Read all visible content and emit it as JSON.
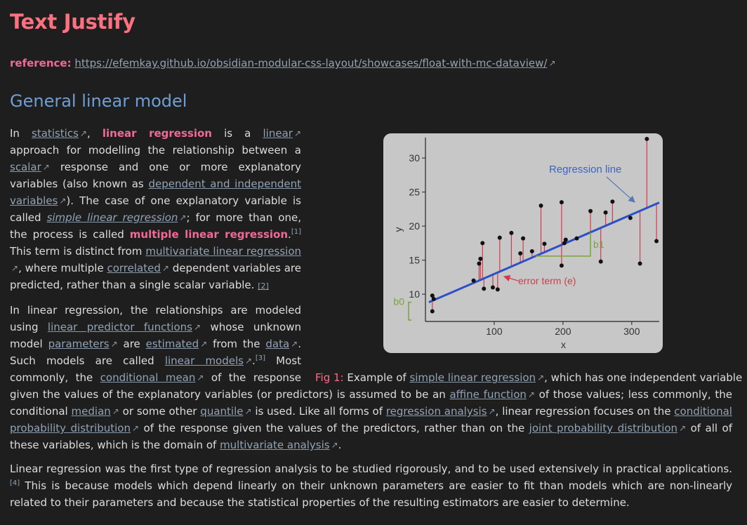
{
  "title": "Text Justify",
  "reference": {
    "label": "reference:",
    "url": "https://efemkay.github.io/obsidian-modular-css-layout/showcases/float-with-mc-dataview/"
  },
  "section_title": "General linear model",
  "paragraph1": {
    "t0": "In ",
    "link_statistics": "statistics",
    "t1": ", ",
    "hl_linear_regression": "linear regression",
    "t2": " is a ",
    "link_linear": "linear",
    "t3": " approach for modelling the relationship between a ",
    "link_scalar": "scalar",
    "t4": " response and one or more explanatory variables (also known as ",
    "link_dep_indep": "dependent and independent variables",
    "t5": "). The case of one explanatory variable is called ",
    "link_simple_lr": "simple linear regression",
    "t6": "; for more than one, the process is called ",
    "hl_multiple_lr": "multiple linear regression",
    "t7": ".",
    "sup1": "[1]",
    "t8": " This term is distinct from ",
    "link_multivariate_lr": "multivariate linear regression",
    "t9": ", where multiple ",
    "link_correlated": "correlated",
    "t10": " dependent variables are predicted, rather than a single scalar variable. ",
    "ref2": "[2]"
  },
  "paragraph2": {
    "t0": "In linear regression, the relationships are modeled using ",
    "link_lpf": "linear predictor functions",
    "t1": " whose unknown model ",
    "link_parameters": "parameters",
    "t2": " are ",
    "link_estimated": "estimated",
    "t3": " from the ",
    "link_data": "data",
    "t4": ". Such models are called ",
    "link_linear_models": "linear models",
    "t5": ".",
    "sup3": "[3]",
    "t6": " Most commonly, the ",
    "link_cond_mean": "conditional mean",
    "t7": " of the response given the values of the explanatory variables (or predictors) is assumed to be an ",
    "link_affine": "affine function",
    "t8": " of those values; less commonly, the conditional ",
    "link_median": "median",
    "t9": " or some other ",
    "link_quantile": "quantile",
    "t10": " is used. Like all forms of ",
    "link_regression_analysis": "regression analysis",
    "t11": ", linear regression focuses on the ",
    "link_cond_prob": "conditional probability distribution",
    "t12": " of the response given the values of the predictors, rather than on the ",
    "link_joint_prob": "joint probability distribution",
    "t13": " of all of these variables, which is the domain of ",
    "link_multivariate_analysis": "multivariate analysis",
    "t14": "."
  },
  "paragraph3": {
    "t0": "Linear regression was the first type of regression analysis to be studied rigorously, and to be used extensively in practical applications.",
    "sup4": "[4]",
    "t1": " This is because models which depend linearly on their unknown parameters are easier to fit than models which are non-linearly related to their parameters and because the statistical properties of the resulting estimators are easier to determine."
  },
  "figure": {
    "caption_label": "Fig 1:",
    "caption_t0": " Example of ",
    "caption_link": "simple linear regression",
    "caption_t1": ", which has one independent variable"
  },
  "icons": {
    "external_link": "external-link-icon"
  },
  "colors": {
    "background": "#1e1e1e",
    "title": "#fb7180",
    "section": "#6e9fd4",
    "highlight": "#f16996",
    "link": "#92a3b5",
    "plot_bg": "#c7c7c7",
    "regression_line": "#2d4fc7",
    "error_term": "#d33b4b",
    "annotation_b": "#7ca23a"
  },
  "chart_data": {
    "type": "scatter",
    "title": "",
    "xlabel": "x",
    "ylabel": "y",
    "xlim": [
      0,
      340
    ],
    "ylim": [
      6,
      33
    ],
    "xticks": [
      100,
      200,
      300
    ],
    "yticks": [
      10,
      15,
      20,
      25,
      30
    ],
    "grid": false,
    "regression_line": {
      "intercept": 8.6,
      "slope": 0.0437,
      "label": "Regression line"
    },
    "annotations": {
      "error": "error term (e)",
      "intercept": "b0",
      "slope": "b1"
    },
    "points": [
      [
        10,
        7.5
      ],
      [
        10,
        9.8
      ],
      [
        12,
        9.3
      ],
      [
        70,
        12.0
      ],
      [
        78,
        14.5
      ],
      [
        80,
        15.2
      ],
      [
        83,
        17.5
      ],
      [
        85,
        10.8
      ],
      [
        98,
        11.0
      ],
      [
        105,
        10.7
      ],
      [
        108,
        18.3
      ],
      [
        125,
        19.0
      ],
      [
        138,
        16.0
      ],
      [
        142,
        18.2
      ],
      [
        155,
        16.3
      ],
      [
        168,
        23.0
      ],
      [
        173,
        17.4
      ],
      [
        198,
        23.5
      ],
      [
        198,
        14.2
      ],
      [
        202,
        17.5
      ],
      [
        204,
        18.0
      ],
      [
        220,
        18.2
      ],
      [
        240,
        22.2
      ],
      [
        255,
        14.8
      ],
      [
        262,
        22.0
      ],
      [
        272,
        23.6
      ],
      [
        298,
        21.2
      ],
      [
        312,
        14.5
      ],
      [
        322,
        32.8
      ],
      [
        336,
        17.8
      ]
    ]
  }
}
